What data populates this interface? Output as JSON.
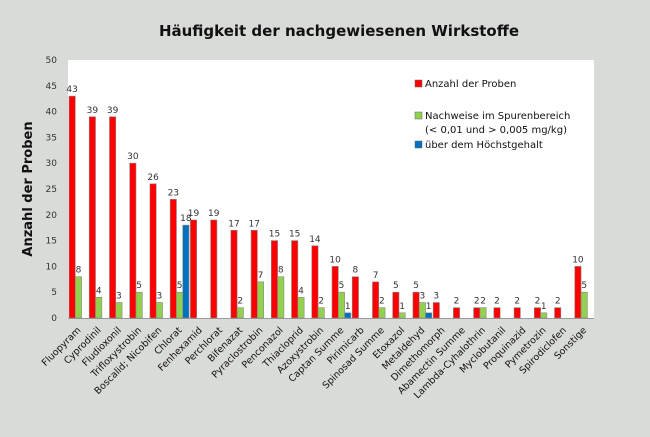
{
  "chart_data": {
    "type": "bar",
    "title": "Häufigkeit der nachgewiesenen Wirkstoffe",
    "xlabel": "",
    "ylabel": "Anzahl der Proben",
    "ylim": [
      0,
      50
    ],
    "yticks": [
      0,
      5,
      10,
      15,
      20,
      25,
      30,
      35,
      40,
      45,
      50
    ],
    "grid": false,
    "legend_position": "top-right",
    "categories": [
      "Fluopyram",
      "Cyprodinil",
      "Fludioxonil",
      "Trifloxystrobin",
      "Boscalid; Nicobifen",
      "Chlorat",
      "Fenhexamid",
      "Perchlorat",
      "Bifenazat",
      "Pyraclostrobin",
      "Penconazol",
      "Thiacloprid",
      "Azoxystrobin",
      "Captan Summe",
      "Pirimicarb",
      "Spinosad Summe",
      "Etoxazol",
      "Metaldehyd",
      "Dimethomorph",
      "Abamectin Summe",
      "Lambda-Cyhalothrin",
      "Myclobutanil",
      "Proquinazid",
      "Pymetrozin",
      "Spirodiclofen",
      "Sonstige"
    ],
    "series": [
      {
        "name": "Anzahl der Proben",
        "color": "#ff0000",
        "values": [
          43,
          39,
          39,
          30,
          26,
          23,
          19,
          19,
          17,
          17,
          15,
          15,
          14,
          10,
          8,
          7,
          5,
          5,
          3,
          2,
          2,
          2,
          2,
          2,
          2,
          10
        ]
      },
      {
        "name": "Nachweise im Spurenbereich (< 0,01 und > 0,005 mg/kg)",
        "color": "#92d050",
        "values": [
          8,
          4,
          3,
          5,
          3,
          5,
          null,
          null,
          2,
          7,
          8,
          4,
          2,
          5,
          null,
          2,
          1,
          3,
          null,
          null,
          2,
          null,
          null,
          1,
          null,
          5
        ]
      },
      {
        "name": "über dem Höchstgehalt",
        "color": "#0070c0",
        "values": [
          null,
          null,
          null,
          null,
          null,
          18,
          null,
          null,
          null,
          null,
          null,
          null,
          null,
          1,
          null,
          null,
          null,
          1,
          null,
          null,
          null,
          null,
          null,
          null,
          null,
          null
        ]
      }
    ],
    "legend": [
      {
        "label": "Anzahl der Proben",
        "color": "#ff0000"
      },
      {
        "label": "Nachweise im Spurenbereich",
        "label2": "(< 0,01 und > 0,005 mg/kg)",
        "color": "#92d050"
      },
      {
        "label": "über dem Höchstgehalt",
        "color": "#0070c0"
      }
    ]
  }
}
